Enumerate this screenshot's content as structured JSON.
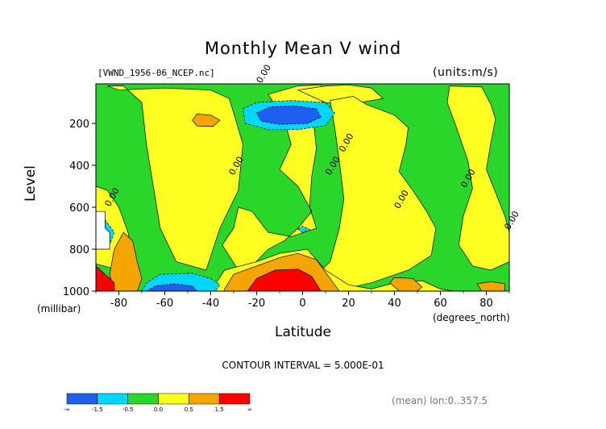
{
  "chart_data": {
    "type": "heatmap",
    "title": "Monthly Mean V wind",
    "dataset": "[VWND_1956-06_NCEP.nc]",
    "units_label": "(units:m/s)",
    "xlabel": "Latitude",
    "x_units": "(degrees_north)",
    "ylabel": "Level",
    "y_units": "(millibar)",
    "xlim": [
      -90,
      90
    ],
    "ylim": [
      1000,
      10
    ],
    "x_ticks": [
      -80,
      -60,
      -40,
      -20,
      0,
      20,
      40,
      60,
      80
    ],
    "y_ticks": [
      200,
      400,
      600,
      800,
      1000
    ],
    "contour_interval_label": "CONTOUR INTERVAL = 5.000E-01",
    "region_label": "(mean) lon:0..357.5",
    "contour_labels": [
      {
        "text": "0.00",
        "lat": -18,
        "lev": 10
      },
      {
        "text": "0.00",
        "lat": -30,
        "lev": 450
      },
      {
        "text": "0.00",
        "lat": 12,
        "lev": 450
      },
      {
        "text": "0.00",
        "lat": 18,
        "lev": 340
      },
      {
        "text": "0.00",
        "lat": 42,
        "lev": 610
      },
      {
        "text": "0.00",
        "lat": 71,
        "lev": 510
      },
      {
        "text": "0.00",
        "lat": 90,
        "lev": 710
      },
      {
        "text": "0.00",
        "lat": -84,
        "lev": 600
      }
    ],
    "colorbar": {
      "tick_labels": [
        "-∞",
        "-1.5",
        "-0.5",
        "0.0",
        "0.5",
        "1.5",
        "∞"
      ],
      "colors": [
        "#1e5ff0",
        "#00d7ff",
        "#2ad62a",
        "#ffff22",
        "#f5a500",
        "#ff0000"
      ]
    },
    "regions": [
      {
        "fill": "yellow",
        "desc": "southern mid-latitude column",
        "poly": [
          [
            -85,
            20
          ],
          [
            -78,
            20
          ],
          [
            -70,
            100
          ],
          [
            -68,
            300
          ],
          [
            -65,
            500
          ],
          [
            -62,
            700
          ],
          [
            -55,
            860
          ],
          [
            -42,
            900
          ],
          [
            -36,
            700
          ],
          [
            -28,
            520
          ],
          [
            -26,
            300
          ],
          [
            -30,
            150
          ],
          [
            -32,
            80
          ],
          [
            -40,
            40
          ],
          [
            -60,
            30
          ],
          [
            -80,
            40
          ]
        ]
      },
      {
        "fill": "yellow",
        "desc": "tropical upper column",
        "poly": [
          [
            -2,
            20
          ],
          [
            8,
            15
          ],
          [
            10,
            60
          ],
          [
            6,
            150
          ],
          [
            5,
            220
          ],
          [
            6,
            320
          ],
          [
            4,
            450
          ],
          [
            3,
            600
          ],
          [
            6,
            700
          ],
          [
            -5,
            740
          ],
          [
            -15,
            720
          ],
          [
            -22,
            620
          ],
          [
            -28,
            600
          ],
          [
            -30,
            700
          ],
          [
            -35,
            780
          ],
          [
            -28,
            900
          ],
          [
            -22,
            880
          ],
          [
            -15,
            800
          ],
          [
            -8,
            760
          ],
          [
            -2,
            700
          ],
          [
            4,
            620
          ],
          [
            -2,
            500
          ],
          [
            -10,
            420
          ],
          [
            -5,
            300
          ],
          [
            -8,
            180
          ],
          [
            -15,
            60
          ]
        ]
      },
      {
        "fill": "yellow",
        "desc": "tropical cap near top",
        "poly": [
          [
            -2,
            40
          ],
          [
            10,
            20
          ],
          [
            20,
            15
          ],
          [
            30,
            30
          ],
          [
            35,
            80
          ],
          [
            20,
            110
          ],
          [
            10,
            100
          ],
          [
            4,
            70
          ]
        ]
      },
      {
        "fill": "yellow",
        "desc": "northern subtropics",
        "poly": [
          [
            12,
            90
          ],
          [
            22,
            70
          ],
          [
            28,
            110
          ],
          [
            40,
            160
          ],
          [
            46,
            220
          ],
          [
            45,
            300
          ],
          [
            42,
            430
          ],
          [
            48,
            520
          ],
          [
            54,
            620
          ],
          [
            58,
            700
          ],
          [
            56,
            830
          ],
          [
            46,
            900
          ],
          [
            38,
            930
          ],
          [
            30,
            960
          ],
          [
            22,
            980
          ],
          [
            14,
            960
          ],
          [
            6,
            920
          ],
          [
            12,
            860
          ],
          [
            16,
            700
          ],
          [
            18,
            560
          ],
          [
            16,
            380
          ],
          [
            14,
            220
          ]
        ]
      },
      {
        "fill": "yellow",
        "desc": "northern high latitudes",
        "poly": [
          [
            64,
            20
          ],
          [
            78,
            25
          ],
          [
            82,
            110
          ],
          [
            84,
            180
          ],
          [
            82,
            290
          ],
          [
            80,
            420
          ],
          [
            84,
            530
          ],
          [
            88,
            640
          ],
          [
            90,
            720
          ],
          [
            90,
            860
          ],
          [
            82,
            900
          ],
          [
            74,
            880
          ],
          [
            68,
            780
          ],
          [
            70,
            640
          ],
          [
            74,
            510
          ],
          [
            72,
            380
          ],
          [
            67,
            220
          ],
          [
            63,
            100
          ]
        ]
      },
      {
        "fill": "yellow",
        "desc": "near-ground band",
        "poly": [
          [
            -34,
            900
          ],
          [
            -20,
            860
          ],
          [
            -10,
            820
          ],
          [
            2,
            800
          ],
          [
            10,
            900
          ],
          [
            20,
            970
          ],
          [
            30,
            990
          ],
          [
            40,
            960
          ],
          [
            52,
            950
          ],
          [
            60,
            990
          ],
          [
            66,
            1000
          ],
          [
            -40,
            1000
          ]
        ]
      },
      {
        "fill": "yellow",
        "desc": "south polar yellow",
        "poly": [
          [
            -90,
            500
          ],
          [
            -85,
            520
          ],
          [
            -80,
            600
          ],
          [
            -76,
            720
          ],
          [
            -74,
            840
          ],
          [
            -80,
            900
          ],
          [
            -90,
            870
          ]
        ]
      },
      {
        "fill": "orange",
        "desc": "southern upper patch",
        "poly": [
          [
            -46,
            155
          ],
          [
            -40,
            160
          ],
          [
            -36,
            185
          ],
          [
            -39,
            215
          ],
          [
            -46,
            212
          ],
          [
            -48,
            185
          ]
        ]
      },
      {
        "fill": "orange",
        "desc": "tropical near-surface",
        "poly": [
          [
            -34,
            990
          ],
          [
            -30,
            920
          ],
          [
            -20,
            880
          ],
          [
            -10,
            840
          ],
          [
            -2,
            820
          ],
          [
            6,
            850
          ],
          [
            10,
            910
          ],
          [
            14,
            970
          ],
          [
            16,
            1000
          ],
          [
            -34,
            1000
          ]
        ]
      },
      {
        "fill": "orange",
        "desc": "south polar orange",
        "poly": [
          [
            -82,
            1000
          ],
          [
            -84,
            920
          ],
          [
            -82,
            800
          ],
          [
            -78,
            720
          ],
          [
            -74,
            760
          ],
          [
            -72,
            860
          ],
          [
            -70,
            940
          ],
          [
            -72,
            1000
          ]
        ]
      },
      {
        "fill": "orange",
        "desc": "northern surface blob 1",
        "poly": [
          [
            42,
            1000
          ],
          [
            38,
            960
          ],
          [
            40,
            935
          ],
          [
            48,
            940
          ],
          [
            52,
            980
          ],
          [
            50,
            1000
          ]
        ]
      },
      {
        "fill": "orange",
        "desc": "northern surface blob 2",
        "poly": [
          [
            78,
            1000
          ],
          [
            76,
            965
          ],
          [
            82,
            955
          ],
          [
            88,
            965
          ],
          [
            88,
            1000
          ]
        ]
      },
      {
        "fill": "red",
        "desc": "tropical jet core",
        "poly": [
          [
            -24,
            1000
          ],
          [
            -20,
            940
          ],
          [
            -12,
            900
          ],
          [
            -2,
            895
          ],
          [
            4,
            930
          ],
          [
            8,
            1000
          ]
        ]
      },
      {
        "fill": "red",
        "desc": "south polar red",
        "poly": [
          [
            -90,
            880
          ],
          [
            -86,
            920
          ],
          [
            -82,
            960
          ],
          [
            -82,
            1000
          ],
          [
            -90,
            1000
          ]
        ]
      },
      {
        "fill": "cyan",
        "desc": "upper negative",
        "poly": [
          [
            -26,
            130
          ],
          [
            -20,
            100
          ],
          [
            -5,
            90
          ],
          [
            10,
            100
          ],
          [
            14,
            150
          ],
          [
            10,
            210
          ],
          [
            -2,
            230
          ],
          [
            -15,
            230
          ],
          [
            -25,
            200
          ]
        ]
      },
      {
        "fill": "cyan",
        "desc": "southern surface negative",
        "poly": [
          [
            -70,
            1000
          ],
          [
            -68,
            960
          ],
          [
            -62,
            920
          ],
          [
            -48,
            915
          ],
          [
            -40,
            940
          ],
          [
            -36,
            970
          ],
          [
            -38,
            1000
          ]
        ]
      },
      {
        "fill": "cyan",
        "desc": "polar cyan",
        "poly": [
          [
            -90,
            620
          ],
          [
            -86,
            660
          ],
          [
            -82,
            720
          ],
          [
            -84,
            780
          ],
          [
            -90,
            780
          ]
        ]
      },
      {
        "fill": "cyan",
        "desc": "small cyan chip",
        "poly": [
          [
            -2,
            705
          ],
          [
            0,
            690
          ],
          [
            3,
            705
          ],
          [
            0,
            720
          ]
        ]
      },
      {
        "fill": "blue",
        "desc": "upper strong negative",
        "poly": [
          [
            -20,
            150
          ],
          [
            -14,
            120
          ],
          [
            -4,
            115
          ],
          [
            6,
            130
          ],
          [
            8,
            170
          ],
          [
            2,
            200
          ],
          [
            -10,
            205
          ],
          [
            -18,
            190
          ]
        ]
      },
      {
        "fill": "blue",
        "desc": "southern surface strong negative",
        "poly": [
          [
            -68,
            1000
          ],
          [
            -64,
            975
          ],
          [
            -56,
            965
          ],
          [
            -48,
            975
          ],
          [
            -46,
            1000
          ]
        ]
      },
      {
        "fill": "white",
        "desc": "masked polar corner",
        "poly": [
          [
            -90,
            620
          ],
          [
            -86,
            620
          ],
          [
            -86,
            700
          ],
          [
            -84,
            720
          ],
          [
            -84,
            800
          ],
          [
            -90,
            800
          ]
        ]
      }
    ]
  }
}
